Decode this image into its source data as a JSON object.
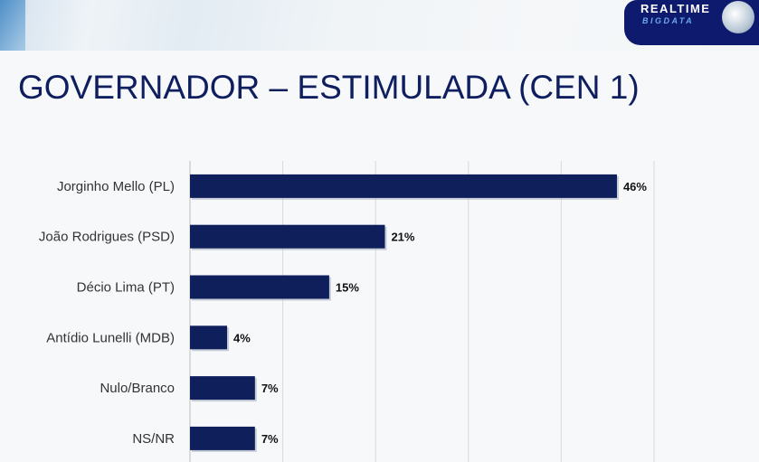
{
  "header": {
    "logo_line1": "REALTIME",
    "logo_line2": "BIGDATA"
  },
  "title": "GOVERNADOR – ESTIMULADA (CEN 1)",
  "chart_data": {
    "type": "bar",
    "orientation": "horizontal",
    "title": "GOVERNADOR – ESTIMULADA (CEN 1)",
    "categories": [
      "Jorginho Mello (PL)",
      "João Rodrigues (PSD)",
      "Décio Lima (PT)",
      "Antídio Lunelli (MDB)",
      "Nulo/Branco",
      "NS/NR"
    ],
    "values": [
      46,
      21,
      15,
      4,
      7,
      7
    ],
    "labels": [
      "46%",
      "21%",
      "15%",
      "4%",
      "7%",
      "7%"
    ],
    "xlim": [
      0,
      50
    ],
    "grid": true,
    "bar_color": "#0e1f5b"
  }
}
